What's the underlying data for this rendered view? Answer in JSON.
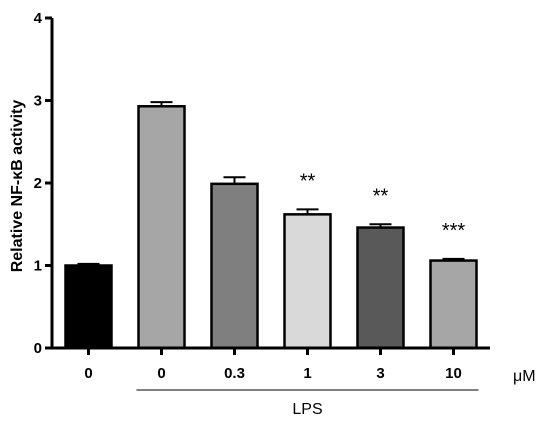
{
  "chart_data": {
    "type": "bar",
    "title": "",
    "ylabel": "Relative NF-κB activity",
    "xlabel": "",
    "unit_label": "μM",
    "group_label": "LPS",
    "ylim": [
      0,
      4
    ],
    "yticks": [
      0,
      1,
      2,
      3,
      4
    ],
    "categories": [
      "0",
      "0",
      "0.3",
      "1",
      "3",
      "10"
    ],
    "values": [
      1.0,
      2.93,
      1.99,
      1.62,
      1.46,
      1.06
    ],
    "errors": [
      0.02,
      0.05,
      0.08,
      0.06,
      0.04,
      0.02
    ],
    "significance": [
      "",
      "",
      "",
      "**",
      "**",
      "***"
    ],
    "colors": [
      "#000000",
      "#a6a6a6",
      "#7f7f7f",
      "#d9d9d9",
      "#595959",
      "#a6a6a6"
    ],
    "lps_group_range": [
      1,
      5
    ]
  }
}
